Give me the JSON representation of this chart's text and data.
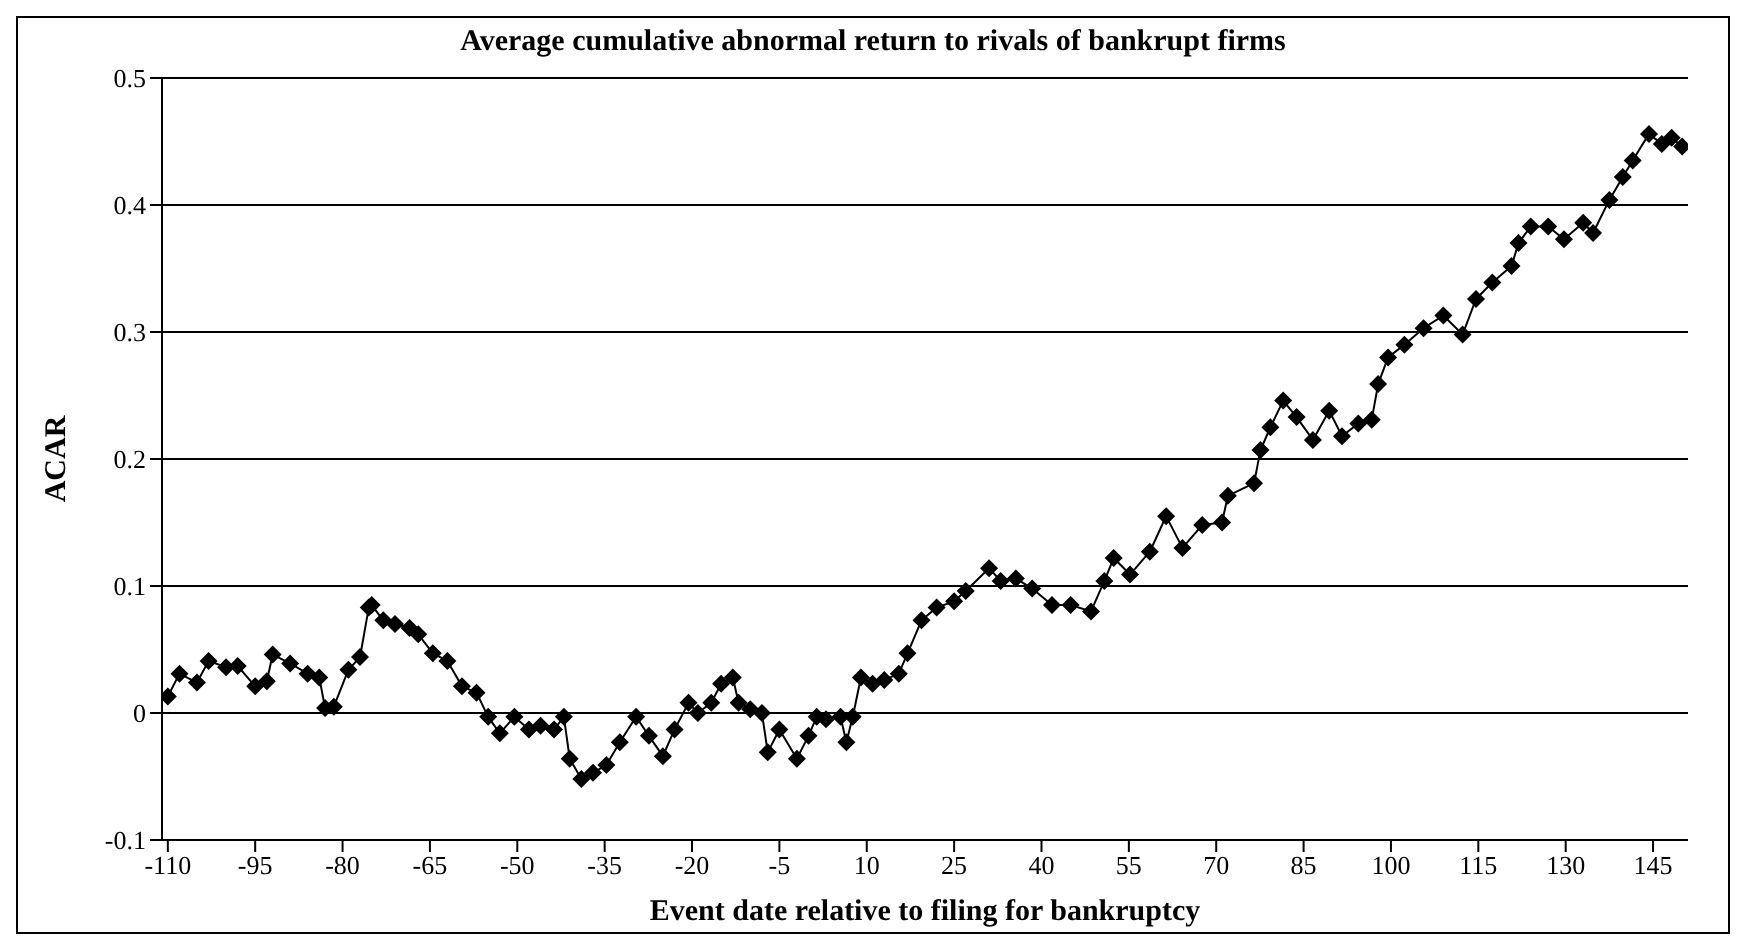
{
  "chart_data": {
    "type": "line",
    "title": "Average cumulative abnormal return to rivals of bankrupt firms",
    "xlabel": "Event date relative to filing for bankruptcy",
    "ylabel": "ACAR",
    "x": [
      -110,
      -108,
      -105,
      -103,
      -100,
      -98,
      -95,
      -93,
      -92,
      -89,
      -86,
      -84,
      -83,
      -81.5,
      -79,
      -77,
      -75.5,
      -75,
      -73,
      -71,
      -68.5,
      -67,
      -64.5,
      -62,
      -59.5,
      -57,
      -55,
      -53,
      -50.5,
      -48,
      -46,
      -43.7,
      -42,
      -41,
      -39,
      -37,
      -34.7,
      -32.4,
      -29.6,
      -27.4,
      -25,
      -23,
      -20.6,
      -19,
      -16.7,
      -15,
      -13,
      -12,
      -10,
      -8,
      -7,
      -5,
      -2,
      0,
      1.4,
      3,
      5.5,
      6.5,
      7.6,
      9,
      11,
      13,
      15.5,
      17,
      19.4,
      22,
      25,
      27,
      31,
      33,
      35.6,
      38.4,
      41.8,
      45,
      48.5,
      50.8,
      52.4,
      55.2,
      58.6,
      61.4,
      64.2,
      67.6,
      71,
      72,
      76.5,
      77.6,
      79.3,
      81.5,
      83.8,
      86.6,
      89.4,
      91.6,
      94.4,
      96.7,
      97.8,
      99.5,
      102.3,
      105.6,
      109,
      112.3,
      114.6,
      117.4,
      120.7,
      121.9,
      124,
      127,
      129.7,
      133,
      134.7,
      137.5,
      139.8,
      141.5,
      144.3,
      146.5,
      148.2,
      150
    ],
    "series": [
      {
        "color": "#000000",
        "values": [
          0.013,
          0.031,
          0.024,
          0.041,
          0.036,
          0.037,
          0.021,
          0.025,
          0.046,
          0.039,
          0.031,
          0.028,
          0.004,
          0.005,
          0.034,
          0.044,
          0.083,
          0.085,
          0.073,
          0.07,
          0.067,
          0.062,
          0.047,
          0.041,
          0.021,
          0.016,
          -0.003,
          -0.016,
          -0.003,
          -0.013,
          -0.01,
          -0.013,
          -0.003,
          -0.036,
          -0.052,
          -0.047,
          -0.041,
          -0.023,
          -0.003,
          -0.018,
          -0.034,
          -0.013,
          0.008,
          0,
          0.008,
          0.023,
          0.028,
          0.008,
          0.003,
          0,
          -0.031,
          -0.013,
          -0.036,
          -0.018,
          -0.003,
          -0.005,
          -0.003,
          -0.023,
          -0.003,
          0.028,
          0.023,
          0.026,
          0.031,
          0.047,
          0.073,
          0.083,
          0.088,
          0.096,
          0.114,
          0.104,
          0.106,
          0.098,
          0.085,
          0.085,
          0.08,
          0.104,
          0.122,
          0.109,
          0.127,
          0.155,
          0.13,
          0.148,
          0.15,
          0.171,
          0.181,
          0.207,
          0.225,
          0.246,
          0.233,
          0.215,
          0.238,
          0.218,
          0.228,
          0.231,
          0.259,
          0.28,
          0.29,
          0.303,
          0.313,
          0.298,
          0.326,
          0.339,
          0.352,
          0.37,
          0.383,
          0.383,
          0.373,
          0.386,
          0.378,
          0.404,
          0.422,
          0.435,
          0.456,
          0.448,
          0.453,
          0.446
        ]
      }
    ],
    "xlim": [
      -111,
      151
    ],
    "xticks": [
      -110,
      -95,
      -80,
      -65,
      -50,
      -35,
      -20,
      -5,
      10,
      25,
      40,
      55,
      70,
      85,
      100,
      115,
      130,
      145
    ],
    "ylim": [
      -0.1,
      0.5
    ],
    "yticks": [
      -0.1,
      0,
      0.1,
      0.2,
      0.3,
      0.4,
      0.5
    ],
    "grid": "y",
    "marker": "diamond",
    "line_style": "solid"
  }
}
